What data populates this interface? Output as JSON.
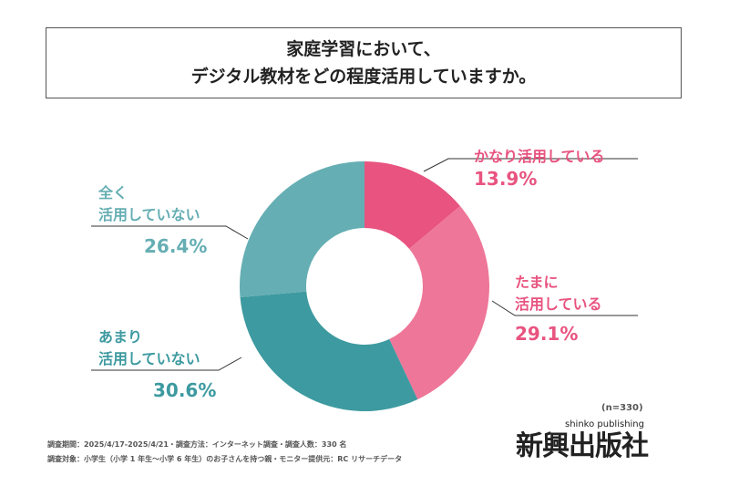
{
  "title": {
    "line1": "家庭学習において、",
    "line2": "デジタル教材をどの程度活用していますか。"
  },
  "chart_data": {
    "type": "pie",
    "donut": true,
    "categories": [
      "かなり活用している",
      "たまに活用している",
      "あまり活用していない",
      "全く活用していない"
    ],
    "values": [
      13.9,
      29.1,
      30.6,
      26.4
    ],
    "colors": [
      "#E8537F",
      "#EE7699",
      "#3D9AA0",
      "#65AEB3"
    ],
    "labels": [
      {
        "l1": "",
        "l2": "かなり活用している",
        "pct": "13.9%"
      },
      {
        "l1": "たまに",
        "l2": "活用している",
        "pct": "29.1%"
      },
      {
        "l1": "あまり",
        "l2": "活用していない",
        "pct": "30.6%"
      },
      {
        "l1": "全く",
        "l2": "活用していない",
        "pct": "26.4%"
      }
    ]
  },
  "sample": "(n=330)",
  "footnote": {
    "line1": "調査期間：2025/4/17-2025/4/21・調査方法：インターネット調査・調査人数：330 名",
    "line2": "調査対象：小学生（小学 1 年生～小学 6 年生）のお子さんを持つ親・モニター提供元：RC リサーチデータ"
  },
  "logo": {
    "text": "新興出版社",
    "sub": "shinko publishing"
  }
}
